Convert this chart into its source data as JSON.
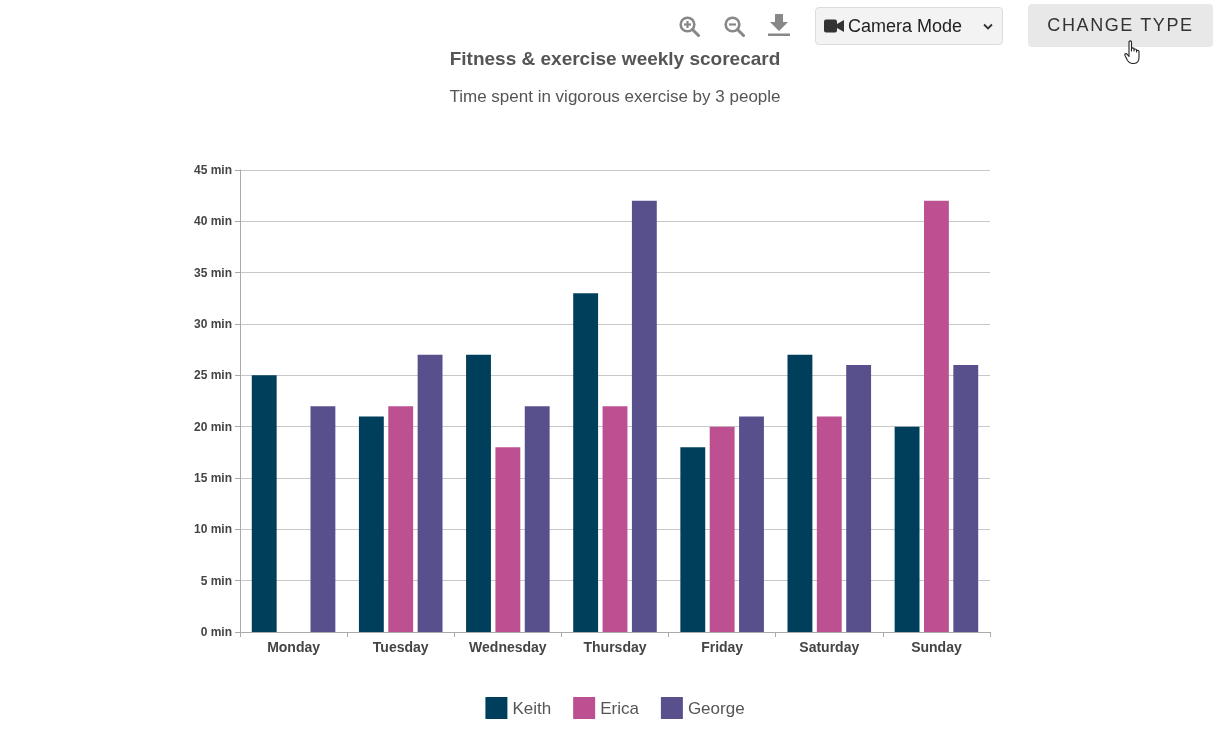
{
  "chart_data": {
    "type": "bar",
    "title": "Fitness & exercise weekly scorecard",
    "subtitle": "Time spent in vigorous exercise by 3 people",
    "categories": [
      "Monday",
      "Tuesday",
      "Wednesday",
      "Thursday",
      "Friday",
      "Saturday",
      "Sunday"
    ],
    "series": [
      {
        "name": "Keith",
        "color": "#003f5c",
        "values": [
          25,
          21,
          27,
          33,
          18,
          27,
          20
        ]
      },
      {
        "name": "Erica",
        "color": "#bc5090",
        "values": [
          null,
          22,
          18,
          22,
          20,
          21,
          42
        ]
      },
      {
        "name": "George",
        "color": "#58508d",
        "values": [
          22,
          27,
          22,
          42,
          21,
          26,
          26
        ]
      }
    ],
    "ylim": [
      0,
      45
    ],
    "yticks": [
      {
        "value": 0,
        "label": "0 min"
      },
      {
        "value": 5,
        "label": "5 min"
      },
      {
        "value": 10,
        "label": "10 min"
      },
      {
        "value": 15,
        "label": "15 min"
      },
      {
        "value": 20,
        "label": "20 min"
      },
      {
        "value": 25,
        "label": "25 min"
      },
      {
        "value": 30,
        "label": "30 min"
      },
      {
        "value": 35,
        "label": "35 min"
      },
      {
        "value": 40,
        "label": "40 min"
      },
      {
        "value": 45,
        "label": "45 min"
      }
    ],
    "grid": "y",
    "legend": "bottom",
    "annotations": [
      "Camera Mode",
      "CHANGE TYPE"
    ]
  }
}
